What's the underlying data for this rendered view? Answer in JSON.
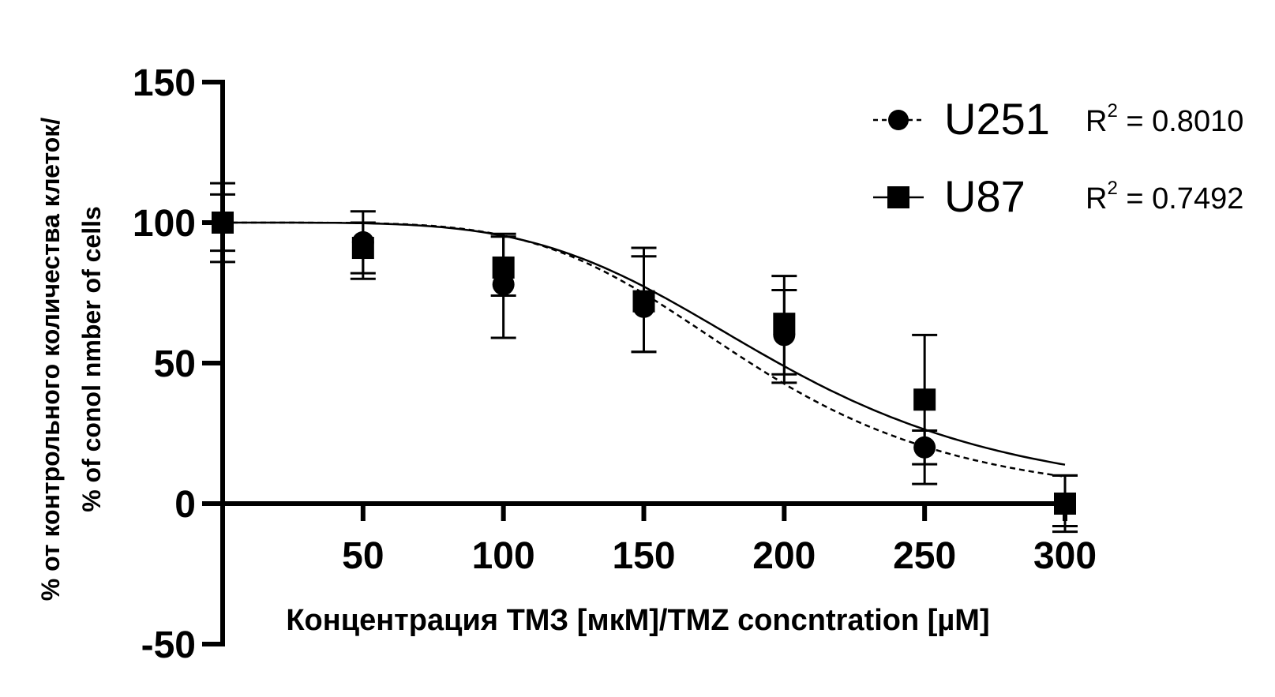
{
  "chart_data": {
    "type": "scatter",
    "xlabel": "Концентрация ТМЗ [мкМ]/TMZ concntration [µM]",
    "ylabel_line1": "% от контрольного количества клеток/",
    "ylabel_line2": "% of conol nmber of cells",
    "xlim": [
      0,
      300
    ],
    "ylim": [
      -50,
      150
    ],
    "x_ticks": [
      "50",
      "100",
      "150",
      "200",
      "250",
      "300"
    ],
    "y_ticks": [
      "150",
      "100",
      "50",
      "0",
      "-50"
    ],
    "series": [
      {
        "name": "U251",
        "marker": "circle",
        "line": "dashed",
        "r2_label": "R",
        "r2_sup": "2",
        "r2_value": " = 0.8010",
        "x": [
          0,
          50,
          100,
          150,
          200,
          250,
          300
        ],
        "y": [
          100,
          93,
          78,
          70,
          60,
          20,
          0
        ],
        "err_up": [
          114,
          104,
          96,
          88,
          76,
          26,
          10
        ],
        "err_down": [
          86,
          80,
          59,
          54,
          43,
          7,
          -10
        ],
        "fit": {
          "top": 100,
          "bottom": 0,
          "ec50": 188,
          "hill": 4.8
        }
      },
      {
        "name": "U87",
        "marker": "square",
        "line": "solid",
        "r2_label": "R",
        "r2_sup": "2",
        "r2_value": " = 0.7492",
        "x": [
          0,
          50,
          100,
          150,
          200,
          250,
          300
        ],
        "y": [
          100,
          91,
          84,
          72,
          64,
          37,
          0
        ],
        "err_up": [
          110,
          100,
          95,
          91,
          81,
          60,
          10
        ],
        "err_down": [
          90,
          82,
          74,
          54,
          46,
          14,
          -8
        ],
        "fit": {
          "top": 100,
          "bottom": 0,
          "ec50": 198,
          "hill": 4.4
        }
      }
    ],
    "legend_position": "top-right",
    "grid": false
  }
}
